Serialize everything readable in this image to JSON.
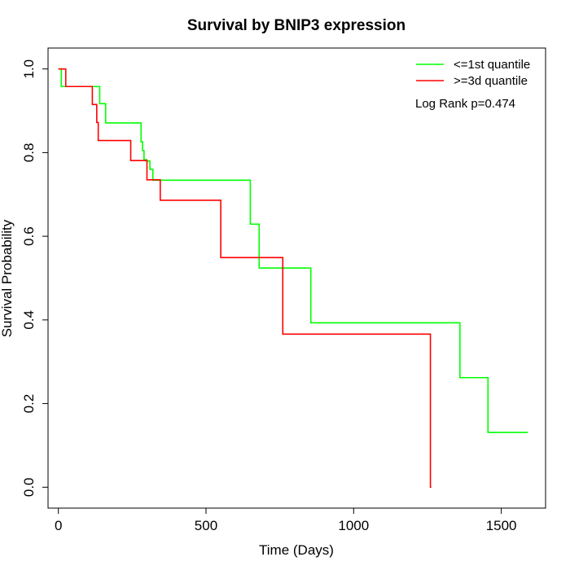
{
  "chart_data": {
    "type": "line",
    "title": "Survival by BNIP3 expression",
    "xlabel": "Time (Days)",
    "ylabel": "Survival Probability",
    "xlim": [
      -35,
      1650
    ],
    "ylim": [
      -0.05,
      1.05
    ],
    "x_ticks": [
      0,
      500,
      1000,
      1500
    ],
    "x_tick_labels": [
      "0",
      "500",
      "1000",
      "1500"
    ],
    "y_ticks": [
      0.0,
      0.2,
      0.4,
      0.6,
      0.8,
      1.0
    ],
    "y_tick_labels": [
      "0.0",
      "0.2",
      "0.4",
      "0.6",
      "0.8",
      "1.0"
    ],
    "grid": false,
    "legend_position": "top-right",
    "annotation": "Log Rank p=0.474",
    "series": [
      {
        "name": "<=1st quantile",
        "color": "#00FF00",
        "steps": {
          "x": [
            0,
            10,
            140,
            150,
            160,
            280,
            285,
            290,
            300,
            310,
            320,
            650,
            675,
            680,
            685,
            855,
            1360,
            1455,
            1590
          ],
          "y": [
            1.0,
            0.958,
            0.917,
            0.917,
            0.871,
            0.826,
            0.805,
            0.783,
            0.78,
            0.76,
            0.734,
            0.629,
            0.629,
            0.524,
            0.524,
            0.393,
            0.262,
            0.131,
            0.131
          ]
        }
      },
      {
        "name": ">=3d quantile",
        "color": "#FF0000",
        "steps": {
          "x": [
            0,
            25,
            115,
            130,
            135,
            245,
            300,
            345,
            550,
            760,
            1260,
            1263
          ],
          "y": [
            1.0,
            0.958,
            0.915,
            0.872,
            0.829,
            0.781,
            0.735,
            0.686,
            0.549,
            0.366,
            0.0,
            0.0
          ]
        }
      }
    ]
  }
}
